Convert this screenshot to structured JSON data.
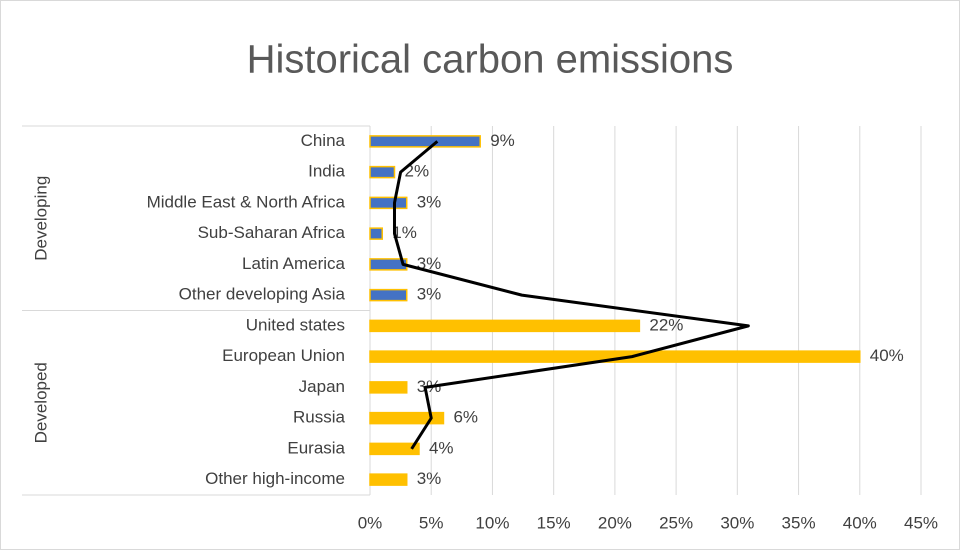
{
  "chart_data": {
    "type": "bar",
    "title": "Historical carbon emissions",
    "groups": [
      {
        "name": "Developing",
        "categories": [
          "China",
          "India",
          "Middle East & North Africa",
          "Sub-Saharan Africa",
          "Latin America",
          "Other developing Asia"
        ]
      },
      {
        "name": "Developed",
        "categories": [
          "United states",
          "European Union",
          "Japan",
          "Russia",
          "Eurasia",
          "Other high-income"
        ]
      }
    ],
    "series": [
      {
        "type": "bar",
        "values": [
          9,
          2,
          3,
          1,
          3,
          3,
          22,
          40,
          3,
          6,
          4,
          3
        ],
        "value_labels": [
          "9%",
          "2%",
          "3%",
          "1%",
          "3%",
          "3%",
          "22%",
          "40%",
          "3%",
          "6%",
          "4%",
          "3%"
        ],
        "colors": [
          "#4472c4",
          "#4472c4",
          "#4472c4",
          "#4472c4",
          "#4472c4",
          "#4472c4",
          "#ffc000",
          "#ffc000",
          "#ffc000",
          "#ffc000",
          "#ffc000",
          "#ffc000"
        ],
        "edge_color": "#ffc000"
      },
      {
        "type": "line",
        "color": "#000000",
        "values": [
          5.5,
          2.5,
          2,
          2,
          2.7,
          12.4,
          30.9,
          21.4,
          4.5,
          5,
          3.4,
          null
        ]
      }
    ],
    "xlim": [
      0,
      45
    ],
    "xticks": [
      {
        "value": 0,
        "label": "0%"
      },
      {
        "value": 5,
        "label": "5%"
      },
      {
        "value": 10,
        "label": "10%"
      },
      {
        "value": 15,
        "label": "15%"
      },
      {
        "value": 20,
        "label": "20%"
      },
      {
        "value": 25,
        "label": "25%"
      },
      {
        "value": 30,
        "label": "30%"
      },
      {
        "value": 35,
        "label": "35%"
      },
      {
        "value": 40,
        "label": "40%"
      },
      {
        "value": 45,
        "label": "45%"
      }
    ],
    "grid": true
  }
}
